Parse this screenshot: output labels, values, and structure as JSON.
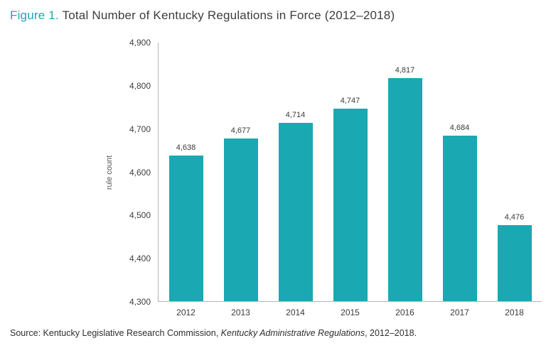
{
  "title": {
    "figure_label": "Figure 1.",
    "text": " Total Number of Kentucky Regulations in Force (2012–2018)"
  },
  "source": {
    "prefix": "Source: Kentucky Legislative Research Commission, ",
    "italic": "Kentucky Administrative Regulations",
    "suffix": ", 2012–2018."
  },
  "colors": {
    "accent": "#1AA8B3",
    "title_text": "#3d3d3d",
    "axis_line": "#b5b5b5",
    "tick_text": "#404040"
  },
  "chart_data": {
    "type": "bar",
    "title": "Total Number of Kentucky Regulations in Force (2012–2018)",
    "categories": [
      "2012",
      "2013",
      "2014",
      "2015",
      "2016",
      "2017",
      "2018"
    ],
    "values": [
      4638,
      4677,
      4714,
      4747,
      4817,
      4684,
      4476
    ],
    "value_labels": [
      "4,638",
      "4,677",
      "4,714",
      "4,747",
      "4,817",
      "4,684",
      "4,476"
    ],
    "xlabel": "",
    "ylabel": "rule count",
    "ylim": [
      4300,
      4900
    ],
    "yticks": [
      {
        "value": 4300,
        "label": "4,300"
      },
      {
        "value": 4400,
        "label": "4,400"
      },
      {
        "value": 4500,
        "label": "4,500"
      },
      {
        "value": 4600,
        "label": "4,600"
      },
      {
        "value": 4700,
        "label": "4,700"
      },
      {
        "value": 4800,
        "label": "4,800"
      },
      {
        "value": 4900,
        "label": "4,900"
      }
    ],
    "bar_color": "#1AA8B3",
    "grid": false,
    "legend": "none"
  }
}
